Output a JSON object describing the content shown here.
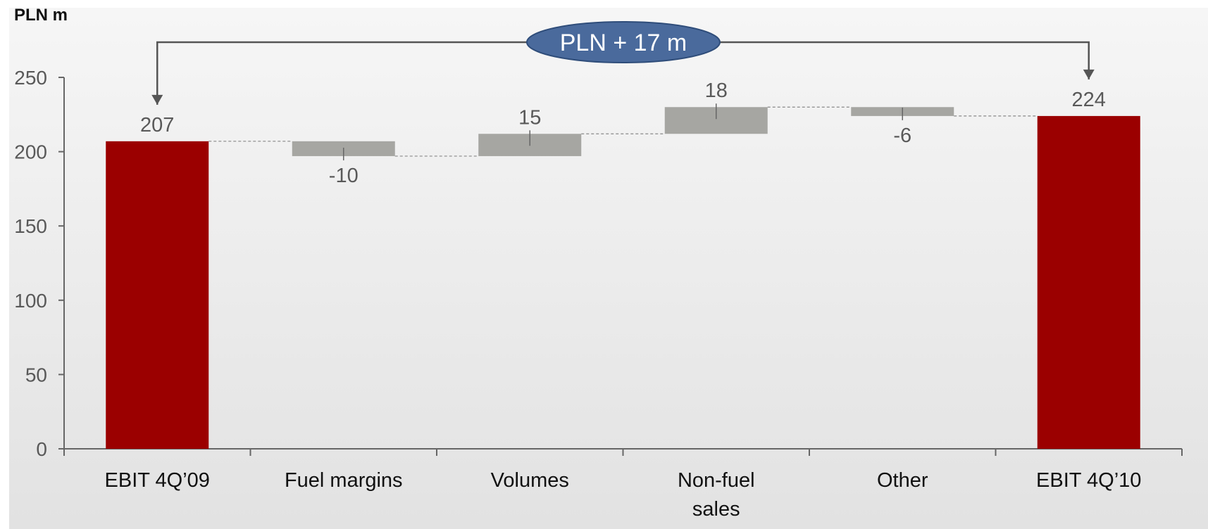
{
  "colors": {
    "total_bar": "#9b0000",
    "step_bar": "#a6a6a2",
    "axis": "#666666",
    "callout_fill": "#4a6a9c",
    "callout_stroke": "#2f4d7a",
    "arrow": "#555555"
  },
  "chart_data": {
    "type": "waterfall",
    "unit_label": "PLN m",
    "categories": [
      "EBIT 4Q’09",
      "Fuel margins",
      "Volumes",
      "Non-fuel\nsales",
      "Other",
      "EBIT 4Q’10"
    ],
    "values": [
      207,
      -10,
      15,
      18,
      -6,
      224
    ],
    "kinds": [
      "total",
      "delta",
      "delta",
      "delta",
      "delta",
      "total"
    ],
    "data_labels": [
      "207",
      "-10",
      "15",
      "18",
      "-6",
      "224"
    ],
    "ylim": [
      0,
      250
    ],
    "yticks": [
      0,
      50,
      100,
      150,
      200,
      250
    ],
    "callout": "PLN + 17 m",
    "grid": false
  }
}
